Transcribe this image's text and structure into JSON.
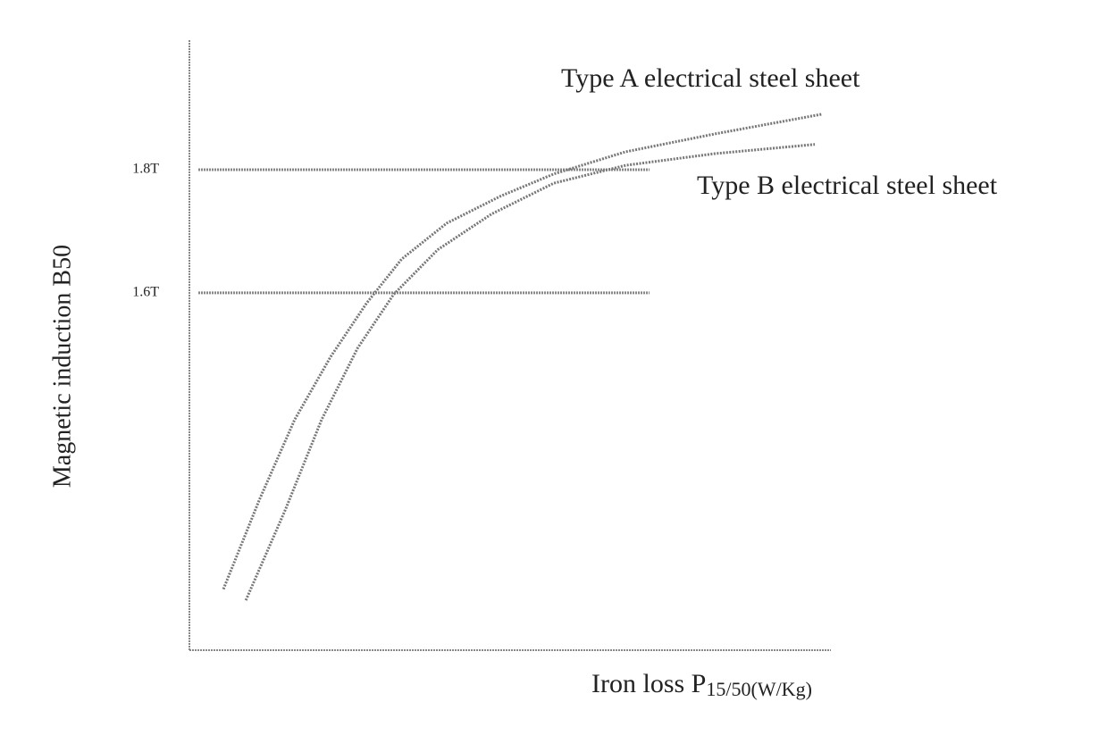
{
  "chart_data": {
    "type": "line",
    "ylabel": "Magnetic induction B50",
    "xlabel": {
      "main": "Iron loss P",
      "sub": "15/50(W/Kg)"
    },
    "xlim": [
      0,
      100
    ],
    "ylim": [
      1.02,
      2.0
    ],
    "yticks": [
      {
        "value": 1.6,
        "label": "1.6T"
      },
      {
        "value": 1.8,
        "label": "1.8T"
      }
    ],
    "grid": true,
    "series": [
      {
        "name": "Type A electrical steel sheet",
        "color": "#777777",
        "x": [
          5.3,
          10.9,
          16.4,
          22.0,
          27.6,
          33.1,
          40.1,
          48.5,
          56.8,
          68.0,
          81.9,
          98.6
        ],
        "values": [
          1.119,
          1.264,
          1.394,
          1.496,
          1.583,
          1.655,
          1.713,
          1.757,
          1.793,
          1.829,
          1.858,
          1.89
        ]
      },
      {
        "name": "Type B electrical steel sheet",
        "color": "#777777",
        "x": [
          8.8,
          15.0,
          20.6,
          26.2,
          31.8,
          38.7,
          47.1,
          56.8,
          68.0,
          81.9,
          97.5
        ],
        "values": [
          1.101,
          1.249,
          1.394,
          1.51,
          1.597,
          1.67,
          1.728,
          1.778,
          1.807,
          1.826,
          1.841
        ]
      }
    ]
  }
}
